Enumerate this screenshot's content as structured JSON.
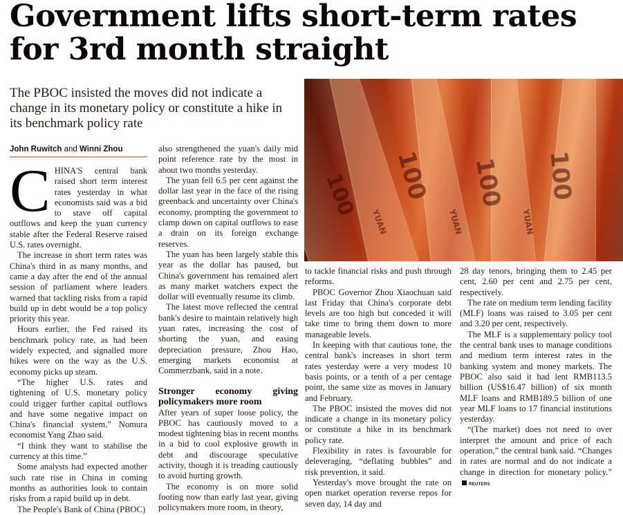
{
  "headline": "Government lifts short-term rates for 3rd month straight",
  "dek": "The PBOC insisted the moves did not indicate a change in its monetary policy or constitute a hike in its benchmark policy rate",
  "photo": {
    "note_text": "100",
    "currency_text": "YUAN",
    "colors": [
      "#7a1e0c",
      "#e07a3a",
      "#c0481c"
    ]
  },
  "byline": {
    "author1": "John Ruwitch",
    "and": "and",
    "author2": "Winni Zhou"
  },
  "accent_color": "#e0a080",
  "article": {
    "dropcap": "C",
    "col1": [
      "HINA'S central bank raised short term interest rates yesterday in what economists said was a bid to stave off capital outflows and keep the yuan currency stable after the Federal Reserve raised U.S. rates overnight.",
      "The increase in short term rates was China's third in as many months, and came a day after the end of the annual session of parliament where leaders warned that tackling risks from a rapid build up in debt would be a top policy priority this year.",
      "Hours earlier, the Fed raised its benchmark policy rate, as had been widely expected, and signalled more hikes were on the way as the U.S. economy picks up steam.",
      "“The higher U.S. rates and tightening of U.S. monetary policy could trigger further capital outflows and have some negative impact on China's financial system,” Nomura economist Yang Zhao said.",
      "“I think they want to stabilise the currency at this time.”",
      "Some analysts had expected another such rate rise in China in coming months as authorities look to contain risks from a rapid build up in debt.",
      "The People's Bank of China (PBOC)"
    ],
    "col2": [
      "also strengthened the yuan's daily mid point reference rate by the most in about two months yesterday.",
      "The yuan fell 6.5 per cent against the dollar last year in the face of the rising greenback and uncertainty over China's economy, prompting the government to clamp down on capital outflows to ease a drain on its foreign exchange reserves.",
      "The yuan has been largely stable this year as the dollar has paused, but China's government has remained alert as many market watchers expect the dollar will eventually resume its climb.",
      "The latest move reflected the central bank's desire to maintain relatively high yuan rates, increasing the cost of shorting the yuan, and easing depreciation pressure, Zhou Hao, emerging markets economist at Commerzbank, said in a note."
    ],
    "subhead": "Stronger economy giving policymakers more room",
    "col2b": [
      "After years of super loose policy, the PBOC has cautiously moved to a modest tightening bias in recent months in a bid to cool explosive growth in debt and discourage speculative activity, though it is treading cautiously to avoid hurting growth.",
      "The economy is on more solid footing now than early last year, giving policymakers more room, in theory,"
    ],
    "col3": [
      "to tackle financial risks and push through reforms.",
      "PBOC Governor Zhou Xiaochuan said last Friday that China's corporate debt levels are too high but conceded it will take time to bring them down to more manageable levels.",
      "In keeping with that cautious tone, the central bank's increases in short term rates yesterday were a very modest 10 basis points, or a tenth of a per centage point, the same size as moves in January and February.",
      "The PBOC insisted the moves did not indicate a change in its monetary policy or constitute a hike in its benchmark policy rate.",
      "Flexibility in rates is favourable for deleveraging, “deflating bubbles” and risk prevention, it said.",
      "Yesterday's move brought the rate on open market operation reverse repos for seven day, 14 day and"
    ],
    "col4": [
      "28 day tenors, bringing them to 2.45 per cent, 2.60 per cent and 2.75 per cent, respectively.",
      "The rate on medium term lending facility (MLF) loans was raised to 3.05 per cent and 3.20 per cent, respectively.",
      "The MLF is a supplementary policy tool the central bank uses to manage conditions and medium term interest rates in the banking system and money markets. The PBOC also said it had lent RMB113.5 billion (US$16.47 billion) of six month MLF loans and RMB189.5 billion of one year MLF loans to 17 financial institutions yesterday.",
      "“(The market) does not need to over interpret the amount and price of each operation,” the central bank said. “Changes in rates are normal and do not indicate a change in direction for monetary policy.”"
    ],
    "source": "REUTERS"
  }
}
